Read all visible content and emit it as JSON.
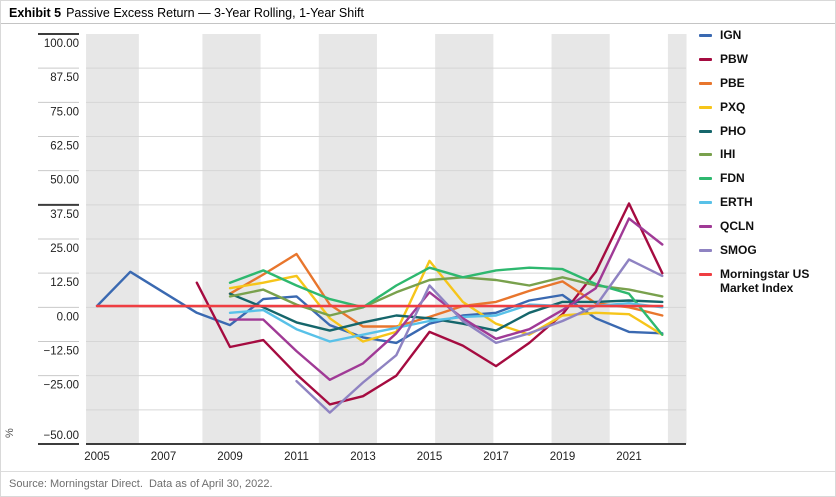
{
  "header": {
    "exhibit_label": "Exhibit 5",
    "title": "Passive Excess Return — 3-Year Rolling, 1-Year Shift"
  },
  "footer": {
    "source_text": "Source: Morningstar Direct.  Data as of April 30, 2022."
  },
  "y_axis": {
    "unit_label": "%",
    "tick_labels": [
      "100.00",
      "87.50",
      "75.00",
      "62.50",
      "50.00",
      "37.50",
      "25.00",
      "12.50",
      "0.00",
      "−12.50",
      "−25.00",
      "−50.00"
    ],
    "tick_values": [
      100,
      87.5,
      75,
      62.5,
      50,
      37.5,
      25,
      12.5,
      0,
      -12.5,
      -25,
      -50
    ]
  },
  "x_axis": {
    "tick_labels": [
      "2005",
      "2007",
      "2009",
      "2011",
      "2013",
      "2015",
      "2017",
      "2019",
      "2021"
    ]
  },
  "legend": {
    "items": [
      {
        "label": "IGN",
        "color": "#3a69b1"
      },
      {
        "label": "PBW",
        "color": "#a50b40"
      },
      {
        "label": "PBE",
        "color": "#e8762d"
      },
      {
        "label": "PXQ",
        "color": "#f6c51a"
      },
      {
        "label": "PHO",
        "color": "#15666b"
      },
      {
        "label": "IHI",
        "color": "#79a14d"
      },
      {
        "label": "FDN",
        "color": "#2eb86f"
      },
      {
        "label": "ERTH",
        "color": "#58c1e8"
      },
      {
        "label": "QCLN",
        "color": "#a03a96"
      },
      {
        "label": "SMOG",
        "color": "#8f83c2"
      },
      {
        "label": "Morningstar US Market Index",
        "color": "#ef3e42"
      }
    ]
  },
  "chart_data": {
    "type": "line",
    "title": "Passive Excess Return — 3-Year Rolling, 1-Year Shift",
    "ylabel": "%",
    "ylim": [
      -50,
      100
    ],
    "ytick_step": 12.5,
    "x_range": [
      2005,
      2022
    ],
    "xtick_labeled_years": [
      2005,
      2007,
      2009,
      2011,
      2013,
      2015,
      2017,
      2019,
      2021
    ],
    "grid": "horizontal",
    "legend_position": "right",
    "series": [
      {
        "name": "IGN",
        "color": "#3a69b1",
        "start_year": 2005,
        "values": [
          0.5,
          13,
          5.5,
          -2,
          -6.5,
          3,
          4,
          -6.5,
          -11,
          -13,
          -6,
          -3,
          -2,
          2.5,
          4.5,
          -4,
          -9,
          -9.5
        ]
      },
      {
        "name": "PBW",
        "color": "#a50b40",
        "start_year": 2008,
        "values": [
          9,
          -14.5,
          -12,
          -24.5,
          -35.5,
          -32.5,
          -25,
          -9,
          -14,
          -21.5,
          -13,
          -2.5,
          13,
          38,
          12.5
        ]
      },
      {
        "name": "PBE",
        "color": "#e8762d",
        "start_year": 2009,
        "values": [
          5,
          12,
          19.5,
          1,
          -7,
          -7,
          -3.5,
          0.5,
          2,
          6,
          9.5,
          1.5,
          0,
          -3
        ]
      },
      {
        "name": "PXQ",
        "color": "#f6c51a",
        "start_year": 2009,
        "values": [
          7,
          9,
          11.5,
          -4,
          -12.5,
          -9,
          17,
          2,
          -6,
          -10,
          -3,
          -2,
          -2.5,
          -10
        ]
      },
      {
        "name": "PHO",
        "color": "#15666b",
        "start_year": 2009,
        "values": [
          5,
          0,
          -5.5,
          -8.5,
          -5.5,
          -3,
          -4,
          -6,
          -8.5,
          -2,
          2,
          2,
          2.5,
          2
        ]
      },
      {
        "name": "IHI",
        "color": "#79a14d",
        "start_year": 2009,
        "values": [
          4,
          6.5,
          1,
          -3,
          0,
          5.5,
          10,
          11,
          10,
          8,
          11,
          8,
          6.5,
          4
        ]
      },
      {
        "name": "FDN",
        "color": "#2eb86f",
        "start_year": 2009,
        "values": [
          9,
          13.5,
          8,
          3,
          0,
          8,
          14.5,
          11,
          13.5,
          14.5,
          14,
          8.5,
          5,
          -10
        ]
      },
      {
        "name": "ERTH",
        "color": "#58c1e8",
        "start_year": 2009,
        "values": [
          -2,
          -1,
          -8,
          -12.5,
          -10,
          -7.5,
          -5,
          -3.5,
          -3,
          1,
          0.5,
          0.5,
          1.5,
          0
        ]
      },
      {
        "name": "QCLN",
        "color": "#a03a96",
        "start_year": 2009,
        "values": [
          -4.5,
          -4.5,
          -16,
          -26.5,
          -20.5,
          -9.5,
          5.5,
          -4,
          -11.5,
          -8,
          -1,
          7,
          32.5,
          23
        ]
      },
      {
        "name": "SMOG",
        "color": "#8f83c2",
        "start_year": 2011,
        "values": [
          -27,
          -38.5,
          -27.5,
          -17.5,
          8,
          -5,
          -13,
          -9.5,
          -5,
          0.5,
          17.5,
          11.5
        ]
      },
      {
        "name": "Morningstar US Market Index",
        "color": "#ef3e42",
        "start_year": 2005,
        "values": [
          0.5,
          0.5,
          0.5,
          0.5,
          0.5,
          0.5,
          0.5,
          0.5,
          0.5,
          0.5,
          0.5,
          0.5,
          0.5,
          0.5,
          0.5,
          0.5,
          0.5,
          0.5
        ]
      }
    ]
  }
}
